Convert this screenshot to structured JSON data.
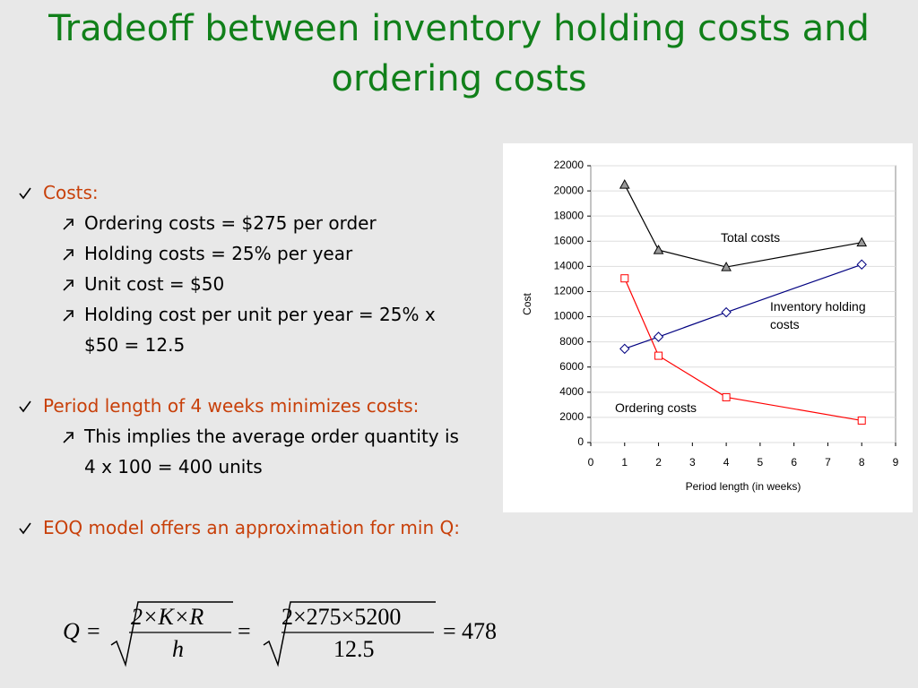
{
  "title": "Tradeoff between inventory holding costs and ordering costs",
  "bullets": [
    {
      "text": "Costs:",
      "sub": [
        "Ordering costs = $275 per order",
        "Holding costs = 25% per year",
        "Unit cost = $50",
        "Holding cost per unit per year = 25% x $50 = 12.5"
      ]
    },
    {
      "text": "Period length of 4 weeks minimizes costs:",
      "sub": [
        "This implies the average order quantity is 4 x 100 = 400 units"
      ]
    },
    {
      "text": "EOQ model offers an approximation for min Q:"
    }
  ],
  "formula": {
    "lhs": "Q",
    "equals": "=",
    "numerator": "2×K×R",
    "denominator": "h",
    "numerator_values": "2×275×5200",
    "denominator_values": "12.5",
    "result": "478"
  },
  "chart_data": {
    "type": "line",
    "xlabel": "Period length (in weeks)",
    "ylabel": "Cost",
    "x": [
      1,
      2,
      4,
      8
    ],
    "series": [
      {
        "name": "Total costs",
        "color": "#000000",
        "marker": "triangle",
        "marker_fill": "#999999",
        "values": [
          20500,
          15300,
          13950,
          15900
        ]
      },
      {
        "name": "Inventory holding costs",
        "color": "#000080",
        "marker": "diamond",
        "marker_fill": "#ffffff",
        "values": [
          7450,
          8400,
          10350,
          14150
        ]
      },
      {
        "name": "Ordering costs",
        "color": "#ff0000",
        "marker": "square",
        "marker_fill": "#ffffff",
        "values": [
          13050,
          6900,
          3600,
          1750
        ]
      }
    ],
    "xlim": [
      0,
      9
    ],
    "xticks": [
      0,
      1,
      2,
      3,
      4,
      5,
      6,
      7,
      8,
      9
    ],
    "ylim": [
      0,
      22000
    ],
    "yticks": [
      0,
      2000,
      4000,
      6000,
      8000,
      10000,
      12000,
      14000,
      16000,
      18000,
      20000,
      22000
    ]
  }
}
